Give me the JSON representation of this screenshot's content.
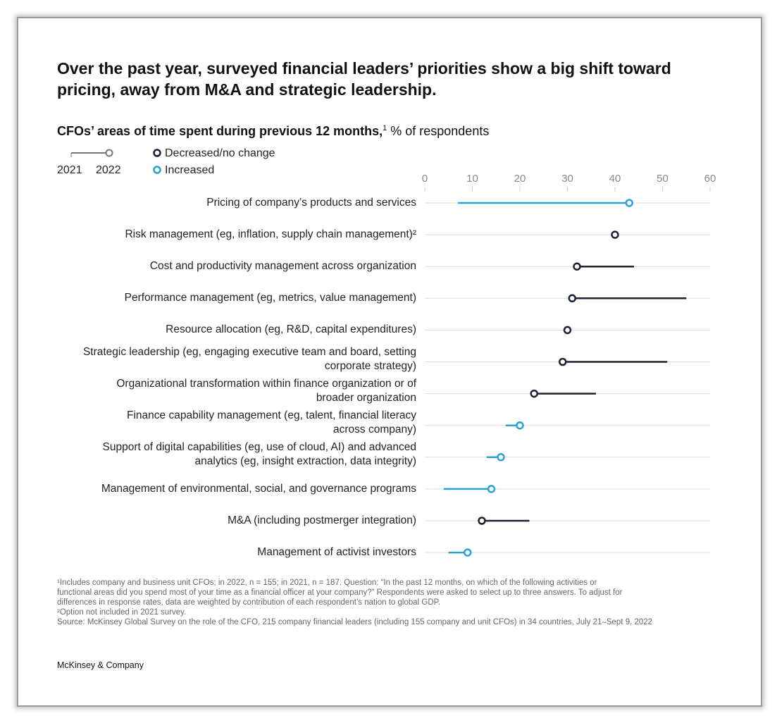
{
  "title": "Over the past year, surveyed financial leaders’ priorities show a big shift toward pricing, away from M&A and strategic leadership.",
  "subtitle_bold": "CFOs’ areas of time spent during previous 12 months,",
  "subtitle_sup": "1",
  "subtitle_unit": " % of respondents",
  "legend": {
    "year_start": "2021",
    "year_end": "2022",
    "decreased": "Decreased/no change",
    "increased": "Increased"
  },
  "colors": {
    "increased": "#2a9fd8",
    "decreased": "#1b2230",
    "grid": "#dcdcdc"
  },
  "chart_data": {
    "type": "dumbbell",
    "xlim": [
      0,
      60
    ],
    "xticks": [
      "0",
      "10",
      "20",
      "30",
      "40",
      "50",
      "60"
    ],
    "grid": true,
    "categories": [
      "Pricing of company’s products and services",
      "Risk management (eg, inflation, supply chain management)²",
      "Cost and productivity management across organization",
      "Performance management (eg, metrics, value management)",
      "Resource allocation (eg, R&D, capital expenditures)",
      "Strategic leadership (eg, engaging executive team and board, setting\ncorporate strategy)",
      "Organizational transformation within finance organization or of\nbroader organization",
      "Finance capability management (eg, talent, financial literacy\nacross company)",
      "Support of digital capabilities (eg, use of cloud, AI) and advanced\nanalytics (eg, insight extraction, data integrity)",
      "Management of environmental, social, and governance programs",
      "M&A (including postmerger integration)",
      "Management of activist investors"
    ],
    "series": [
      {
        "name": "2021",
        "values": [
          7,
          null,
          44,
          55,
          30,
          51,
          36,
          17,
          13,
          4,
          22,
          5
        ]
      },
      {
        "name": "2022",
        "values": [
          43,
          40,
          32,
          31,
          30,
          29,
          23,
          20,
          16,
          14,
          12,
          9
        ]
      }
    ]
  },
  "footnotes": [
    "¹Includes company and business unit CFOs; in 2022, n = 155; in 2021, n = 187. Question: “In the past 12 months, on which of the following activities or\n functional areas did you spend most of your time as a financial officer at your company?” Respondents were asked to select up to three answers. To adjust for\n differences in response rates, data are weighted by contribution of each respondent’s nation to global GDP.",
    "²Option not included in 2021 survey.",
    " Source: McKinsey Global Survey on the role of the CFO, 215 company financial leaders (including 155 company and unit CFOs) in 34 countries, July 21–Sept 9, 2022"
  ],
  "brand": "McKinsey & Company"
}
